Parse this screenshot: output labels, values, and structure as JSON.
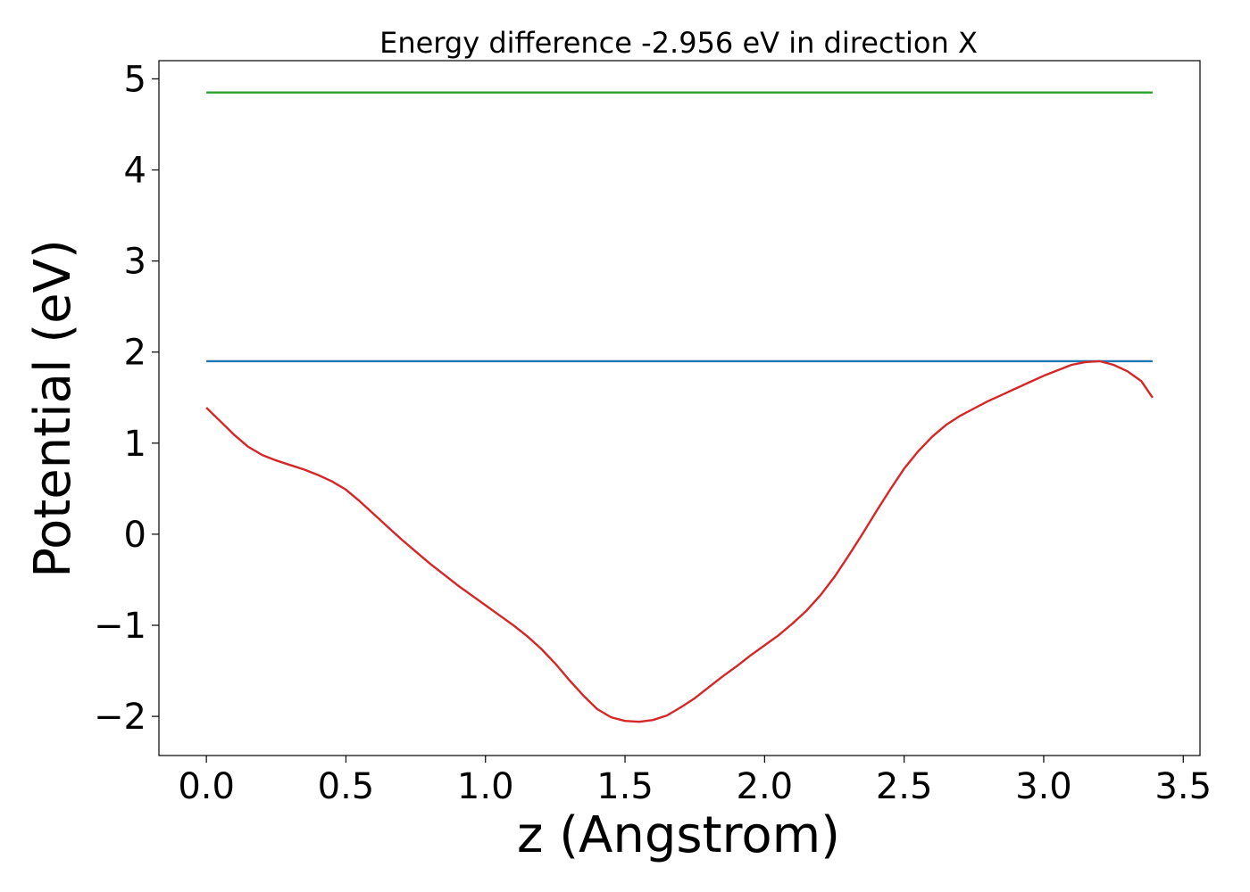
{
  "chart_data": {
    "type": "line",
    "title": "Energy difference -2.956 eV in direction X",
    "xlabel": "z (Angstrom)",
    "ylabel": "Potential (eV)",
    "xlim": [
      -0.17,
      3.56
    ],
    "ylim": [
      -2.43,
      5.2
    ],
    "xticks": [
      0.0,
      0.5,
      1.0,
      1.5,
      2.0,
      2.5,
      3.0,
      3.5
    ],
    "xtick_labels": [
      "0.0",
      "0.5",
      "1.0",
      "1.5",
      "2.0",
      "2.5",
      "3.0",
      "3.5"
    ],
    "yticks": [
      -2,
      -1,
      0,
      1,
      2,
      3,
      4,
      5
    ],
    "ytick_labels": [
      "−2",
      "−1",
      "0",
      "1",
      "2",
      "3",
      "4",
      "5"
    ],
    "grid": false,
    "series": [
      {
        "color": "#2ca02c",
        "x": [
          0.0,
          3.39
        ],
        "y": [
          4.85,
          4.85
        ]
      },
      {
        "color": "#1f77b4",
        "x": [
          0.0,
          3.39
        ],
        "y": [
          1.9,
          1.9
        ]
      },
      {
        "color": "#d62728",
        "x": [
          0.0,
          0.05,
          0.1,
          0.15,
          0.2,
          0.25,
          0.3,
          0.35,
          0.4,
          0.45,
          0.5,
          0.55,
          0.6,
          0.65,
          0.7,
          0.75,
          0.8,
          0.85,
          0.9,
          0.95,
          1.0,
          1.05,
          1.1,
          1.15,
          1.2,
          1.25,
          1.3,
          1.35,
          1.4,
          1.45,
          1.5,
          1.55,
          1.6,
          1.65,
          1.7,
          1.75,
          1.8,
          1.85,
          1.9,
          1.95,
          2.0,
          2.05,
          2.1,
          2.15,
          2.2,
          2.25,
          2.3,
          2.35,
          2.4,
          2.45,
          2.5,
          2.55,
          2.6,
          2.65,
          2.7,
          2.75,
          2.8,
          2.85,
          2.9,
          2.95,
          3.0,
          3.05,
          3.1,
          3.15,
          3.2,
          3.25,
          3.3,
          3.35,
          3.39
        ],
        "y": [
          1.39,
          1.24,
          1.09,
          0.96,
          0.87,
          0.81,
          0.76,
          0.71,
          0.65,
          0.58,
          0.49,
          0.36,
          0.22,
          0.08,
          -0.06,
          -0.19,
          -0.32,
          -0.44,
          -0.56,
          -0.67,
          -0.78,
          -0.89,
          -1.0,
          -1.12,
          -1.26,
          -1.42,
          -1.6,
          -1.77,
          -1.92,
          -2.01,
          -2.05,
          -2.06,
          -2.04,
          -1.99,
          -1.9,
          -1.8,
          -1.68,
          -1.56,
          -1.45,
          -1.33,
          -1.22,
          -1.11,
          -0.98,
          -0.84,
          -0.67,
          -0.47,
          -0.24,
          0.0,
          0.25,
          0.49,
          0.72,
          0.91,
          1.07,
          1.2,
          1.3,
          1.38,
          1.46,
          1.53,
          1.6,
          1.67,
          1.74,
          1.8,
          1.86,
          1.89,
          1.9,
          1.86,
          1.79,
          1.68,
          1.5
        ]
      }
    ]
  }
}
